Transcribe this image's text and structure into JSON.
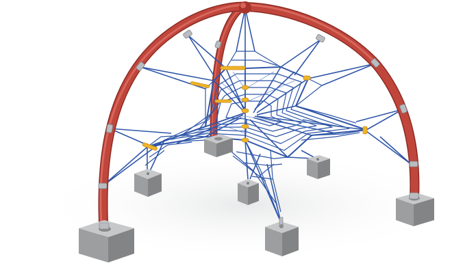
{
  "image": {
    "subject": "rope-net-dome-climbing-frame",
    "colors": {
      "background": "#ffffff",
      "arch": "#c0463c",
      "arch_highlight": "#e07266",
      "arch_shadow": "#8d2a23",
      "rope": "#2f56a8",
      "rope_light": "#4e78c8",
      "connector": "#f0b429",
      "collar": "#b9bcc0",
      "concrete_top": "#c7c8ca",
      "concrete_front": "#9d9ea0",
      "concrete_side": "#838486",
      "ground_shadow": "#e9eaeb"
    }
  }
}
